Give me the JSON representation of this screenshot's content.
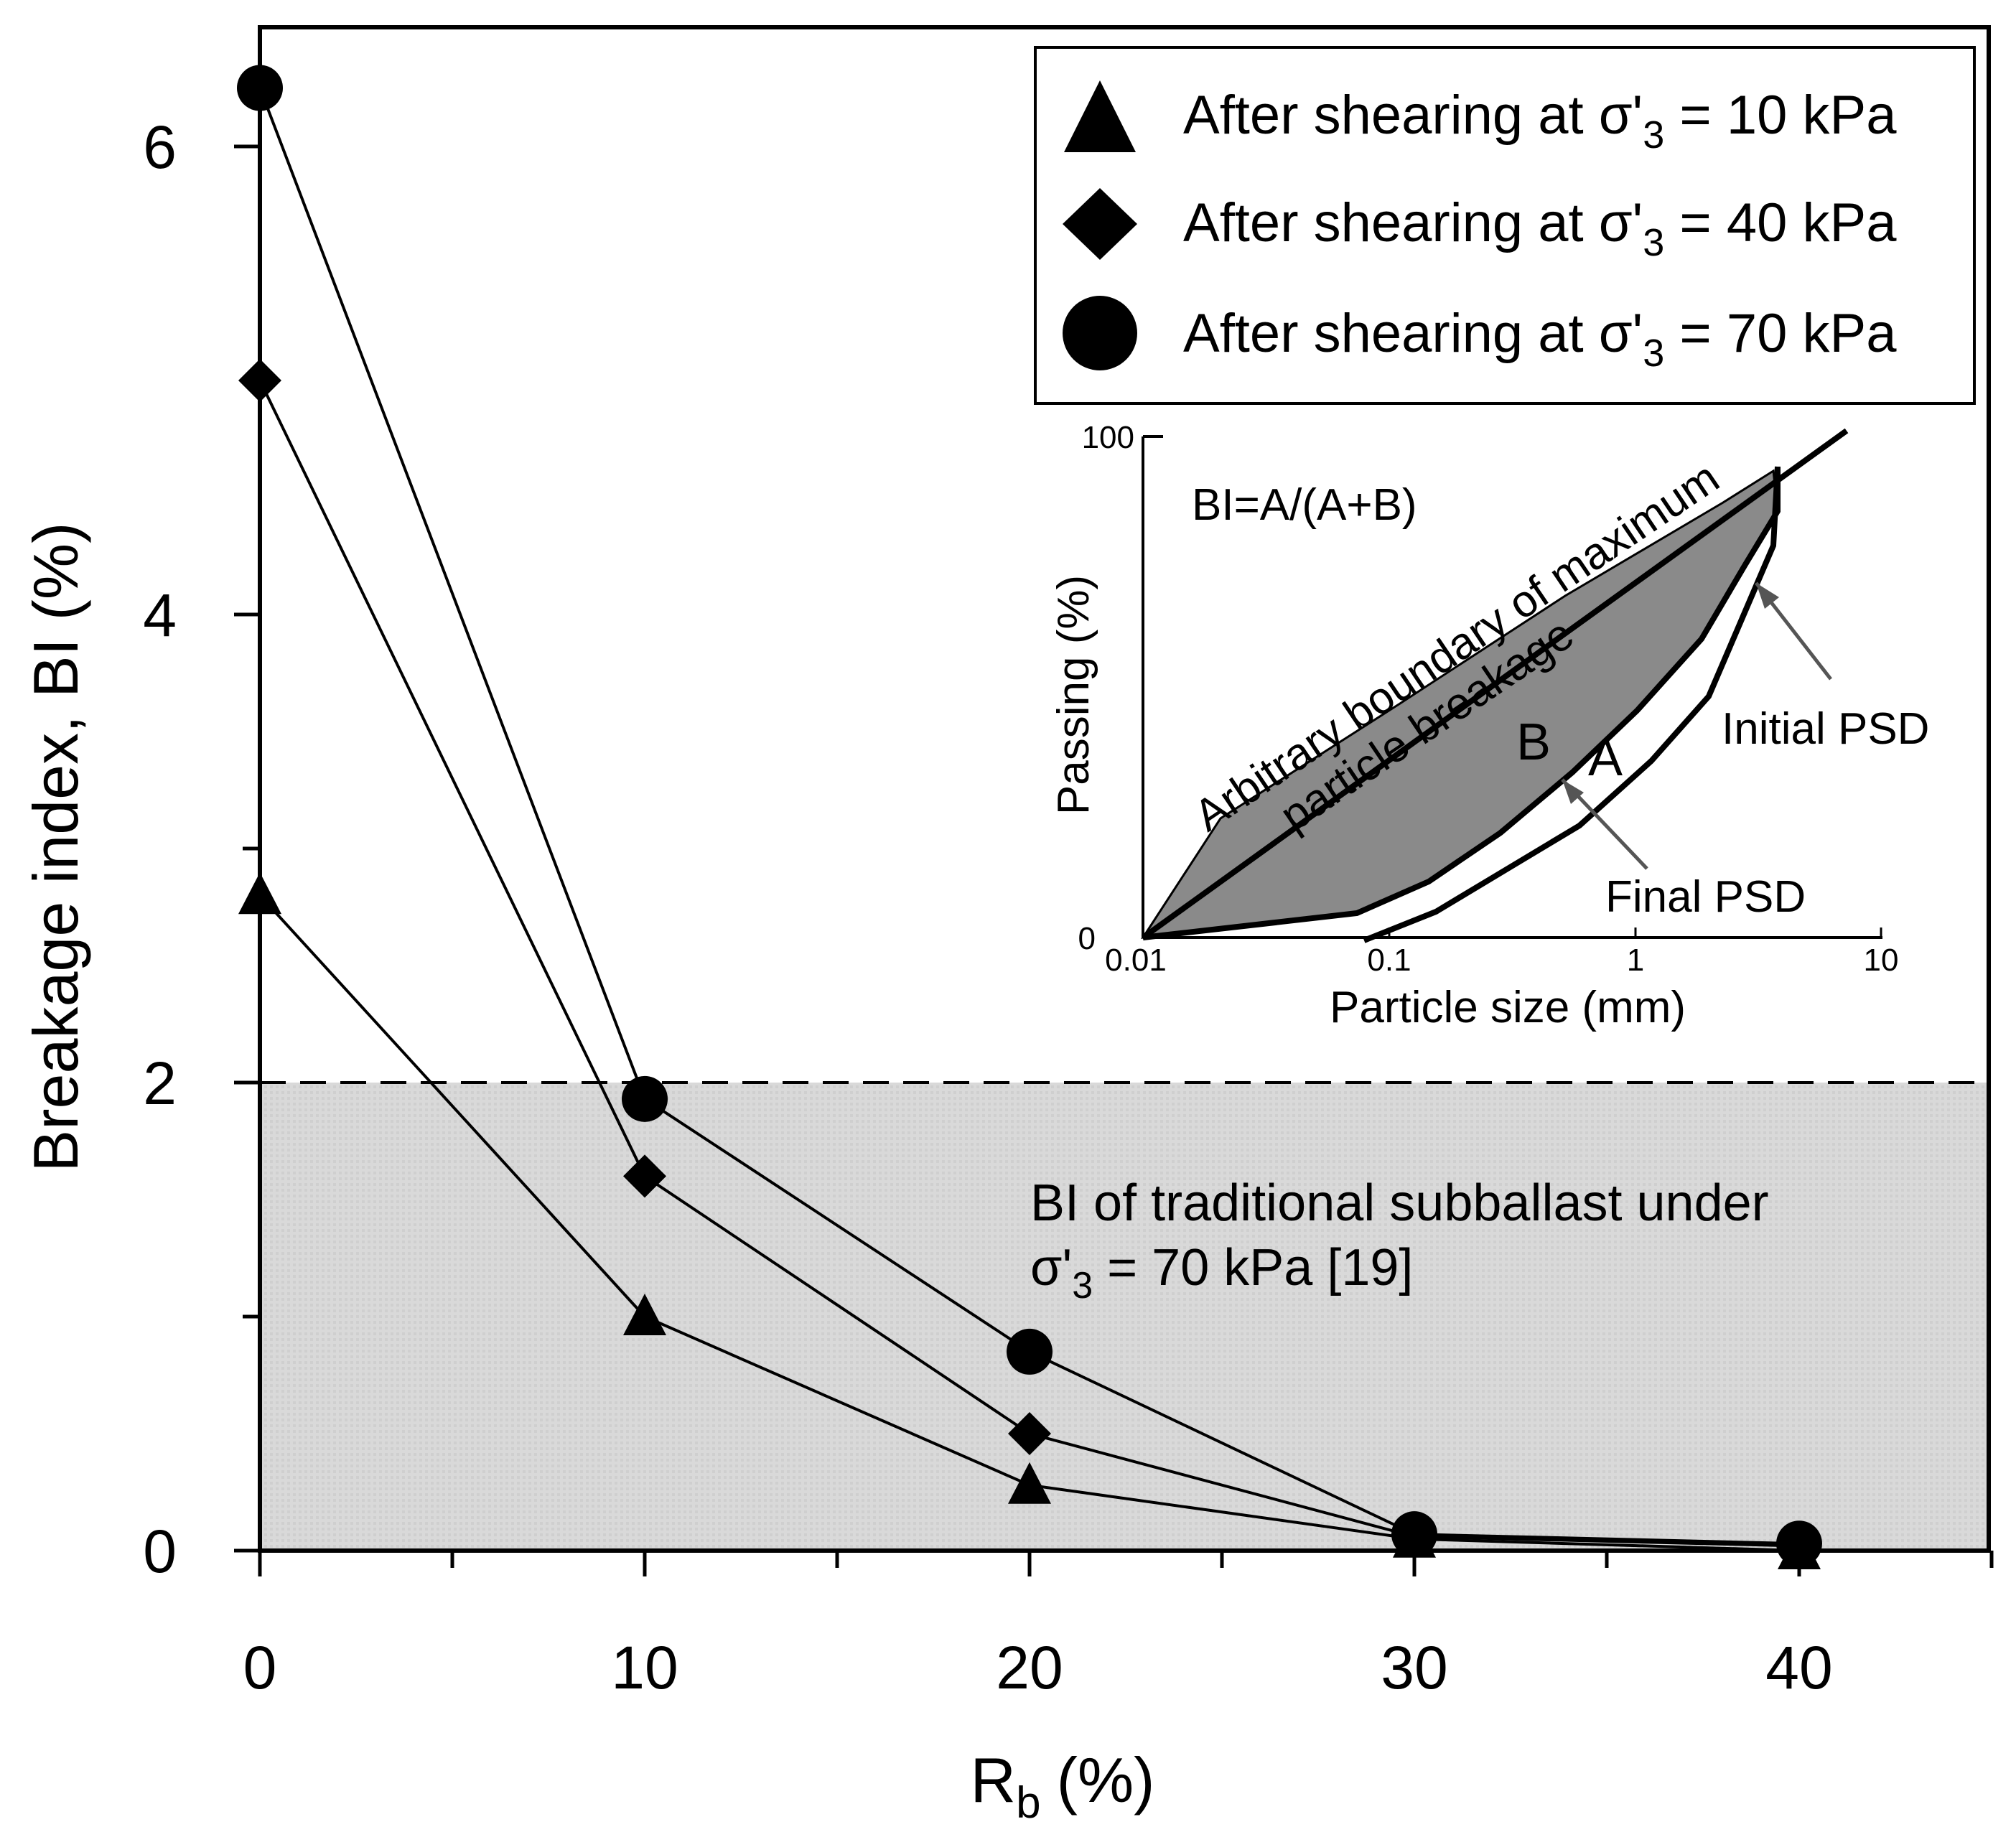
{
  "chart_data": {
    "type": "line",
    "xlabel": "R",
    "xlabel_sub": "b",
    "xlabel_unit": "(%)",
    "ylabel": "Breakage index, BI (%)",
    "xlim": [
      0,
      45
    ],
    "ylim": [
      0,
      6.5
    ],
    "x_ticks": [
      "0",
      "10",
      "20",
      "30",
      "40"
    ],
    "y_ticks": [
      "0",
      "2",
      "4",
      "6"
    ],
    "grid": false,
    "legend_position": "top-right",
    "legend_prefix": "After shearing at σ'",
    "legend_sub": "3",
    "series": [
      {
        "name": "After shearing at σ'3 = 10 kPa",
        "legend_suffix": " = 10 kPa",
        "marker": "triangle",
        "x": [
          0,
          10,
          20,
          30,
          40
        ],
        "y": [
          2.8,
          1.0,
          0.28,
          0.05,
          0.0
        ]
      },
      {
        "name": "After shearing at σ'3 = 40 kPa",
        "legend_suffix": " = 40 kPa",
        "marker": "diamond",
        "x": [
          0,
          10,
          20,
          30,
          40
        ],
        "y": [
          5.0,
          1.6,
          0.5,
          0.06,
          0.02
        ]
      },
      {
        "name": "After shearing at σ'3 = 70 kPa",
        "legend_suffix": " = 70 kPa",
        "marker": "circle",
        "x": [
          0,
          10,
          20,
          30,
          40
        ],
        "y": [
          6.25,
          1.93,
          0.85,
          0.07,
          0.03
        ]
      }
    ],
    "reference_band": {
      "y_max": 2,
      "label_line1": "BI of traditional subballast under",
      "label_line2_prefix": "σ'",
      "label_line2_sub": "3",
      "label_line2_suffix": " = 70 kPa [19]"
    },
    "inset": {
      "formula": "BI=A/(A+B)",
      "ylabel": "Passing (%)",
      "xlabel": "Particle size (mm)",
      "y_ticks": [
        "0",
        "100"
      ],
      "x_ticks": [
        "0.01",
        "0.1",
        "1",
        "10"
      ],
      "boundary_label_line1": "Arbitrary boundary of maximum",
      "boundary_label_line2": "particle breakage",
      "area_a": "A",
      "area_b": "B",
      "initial_label": "Initial PSD",
      "final_label": "Final PSD"
    }
  }
}
